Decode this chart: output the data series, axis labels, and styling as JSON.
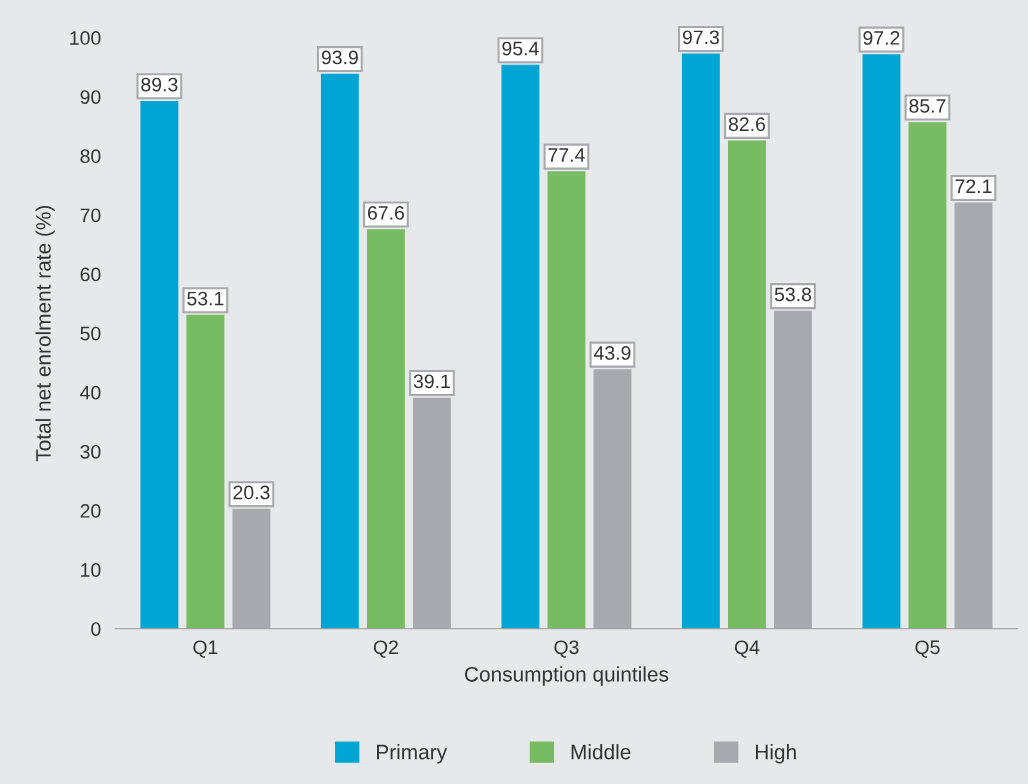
{
  "chart_data": {
    "type": "bar",
    "xlabel": "Consumption quintiles",
    "ylabel": "Total net enrolment rate (%)",
    "categories": [
      "Q1",
      "Q2",
      "Q3",
      "Q4",
      "Q5"
    ],
    "series": [
      {
        "name": "Primary",
        "color": "#00a5d3",
        "values": [
          89.3,
          93.9,
          95.4,
          97.3,
          97.2
        ]
      },
      {
        "name": "Middle",
        "color": "#77bb63",
        "values": [
          53.1,
          67.6,
          77.4,
          82.6,
          85.7
        ]
      },
      {
        "name": "High",
        "color": "#a7a9ac",
        "values": [
          20.3,
          39.1,
          43.9,
          53.8,
          72.1
        ]
      }
    ],
    "ylim": [
      0,
      100
    ],
    "yticks": [
      0,
      10,
      20,
      30,
      40,
      50,
      60,
      70,
      80,
      90,
      100
    ],
    "grid": false,
    "legend": "bottom",
    "data_labels": true
  }
}
